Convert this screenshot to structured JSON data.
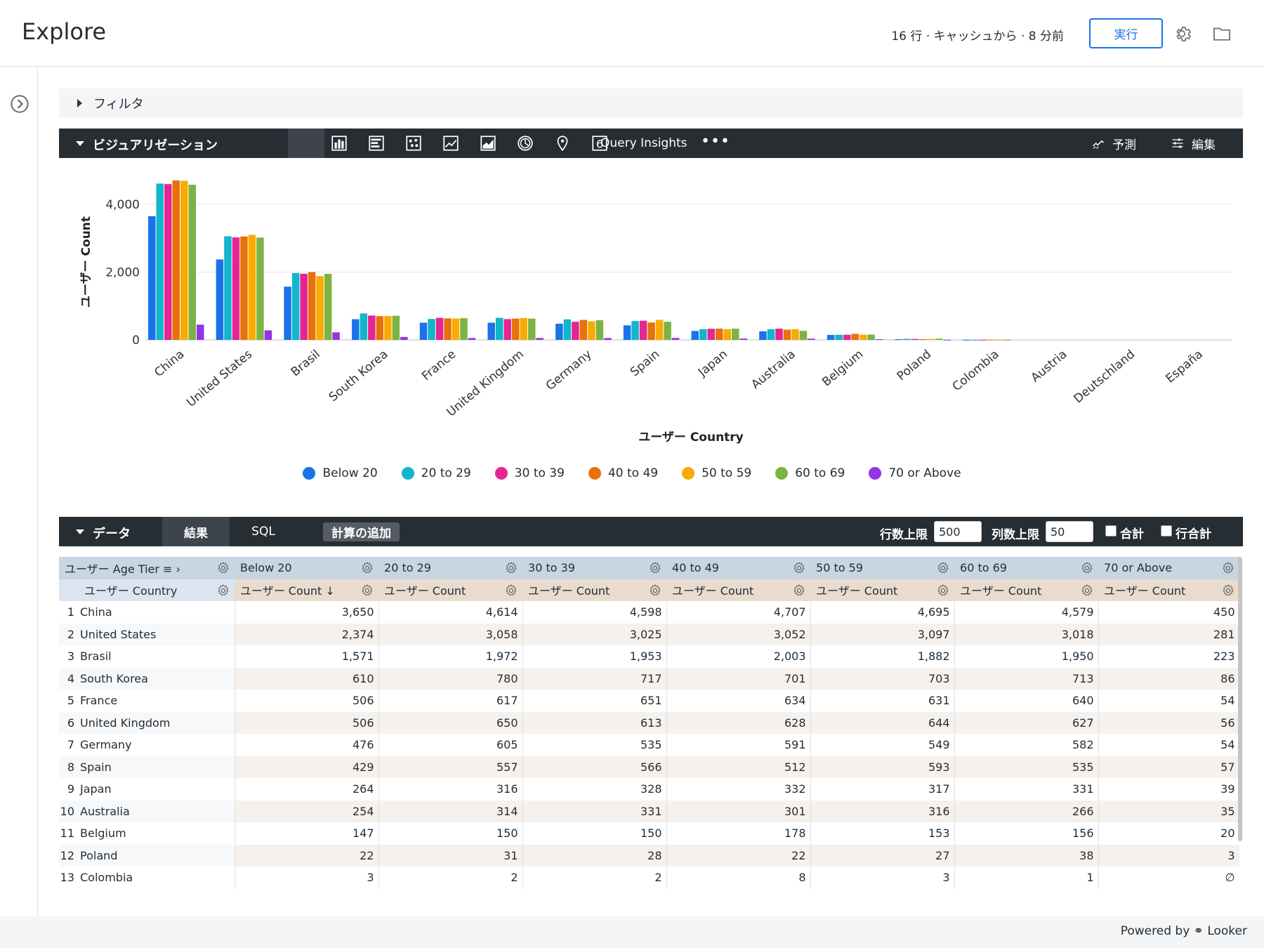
{
  "header": {
    "title": "Explore",
    "status": "16 行 · キャッシュから · 8 分前",
    "run_label": "実行"
  },
  "filter": {
    "label": "フィルタ"
  },
  "viz_bar": {
    "title": "ビジュアリゼーション",
    "icons": [
      "table-icon",
      "column-chart-icon",
      "bar-chart-icon",
      "scatter-icon",
      "line-chart-icon",
      "area-chart-icon",
      "pie-chart-icon",
      "map-pin-icon",
      "single-value-icon"
    ],
    "single_value_glyph": "6",
    "query_insights": "Query Insights",
    "more": "•••",
    "forecast_label": "予測",
    "edit_label": "編集"
  },
  "chart_data": {
    "type": "bar",
    "xlabel": "ユーザー Country",
    "ylabel": "ユーザー Count",
    "y_ticks": [
      "0",
      "2,000",
      "4,000"
    ],
    "ylim": [
      0,
      4000
    ],
    "categories": [
      "China",
      "United States",
      "Brasil",
      "South Korea",
      "France",
      "United Kingdom",
      "Germany",
      "Spain",
      "Japan",
      "Australia",
      "Belgium",
      "Poland",
      "Colombia",
      "Austria",
      "Deutschland",
      "España"
    ],
    "series": [
      {
        "name": "Below 20",
        "color": "#1a73e8",
        "values": [
          3650,
          2374,
          1571,
          610,
          506,
          506,
          476,
          429,
          264,
          254,
          147,
          22,
          3,
          0,
          0,
          0
        ]
      },
      {
        "name": "20 to 29",
        "color": "#12b5cb",
        "values": [
          4614,
          3058,
          1972,
          780,
          617,
          650,
          605,
          557,
          316,
          314,
          150,
          31,
          2,
          0,
          0,
          0
        ]
      },
      {
        "name": "30 to 39",
        "color": "#e52592",
        "values": [
          4598,
          3025,
          1953,
          717,
          651,
          613,
          535,
          566,
          328,
          331,
          150,
          28,
          2,
          0,
          0,
          0
        ]
      },
      {
        "name": "40 to 49",
        "color": "#e8710a",
        "values": [
          4707,
          3052,
          2003,
          701,
          634,
          628,
          591,
          512,
          332,
          301,
          178,
          22,
          8,
          0,
          0,
          0
        ]
      },
      {
        "name": "50 to 59",
        "color": "#f9ab00",
        "values": [
          4695,
          3097,
          1882,
          703,
          631,
          644,
          549,
          593,
          317,
          316,
          153,
          27,
          3,
          0,
          0,
          0
        ]
      },
      {
        "name": "60 to 69",
        "color": "#7cb342",
        "values": [
          4579,
          3018,
          1950,
          713,
          640,
          627,
          582,
          535,
          331,
          266,
          156,
          38,
          1,
          0,
          0,
          0
        ]
      },
      {
        "name": "70 or Above",
        "color": "#9334e6",
        "values": [
          450,
          281,
          223,
          86,
          54,
          56,
          54,
          57,
          39,
          35,
          20,
          3,
          0,
          0,
          0,
          0
        ]
      }
    ]
  },
  "data_bar": {
    "title": "データ",
    "tabs": [
      "結果",
      "SQL"
    ],
    "add_calc": "計算の追加",
    "row_limit_label": "行数上限",
    "row_limit_value": "500",
    "col_limit_label": "列数上限",
    "col_limit_value": "50",
    "totals_label": "合計",
    "row_totals_label": "行合計"
  },
  "table": {
    "pivot_header": "ユーザー Age Tier",
    "dim_header": "ユーザー Country",
    "pivot_values": [
      "Below 20",
      "20 to 29",
      "30 to 39",
      "40 to 49",
      "50 to 59",
      "60 to 69",
      "70 or Above"
    ],
    "measure_headers": [
      "ユーザー Count ↓",
      "ユーザー Count",
      "ユーザー Count",
      "ユーザー Count",
      "ユーザー Count",
      "ユーザー Count",
      "ユーザー Count"
    ],
    "rows": [
      {
        "idx": "1",
        "country": "China",
        "vals": [
          "3,650",
          "4,614",
          "4,598",
          "4,707",
          "4,695",
          "4,579",
          "450"
        ]
      },
      {
        "idx": "2",
        "country": "United States",
        "vals": [
          "2,374",
          "3,058",
          "3,025",
          "3,052",
          "3,097",
          "3,018",
          "281"
        ]
      },
      {
        "idx": "3",
        "country": "Brasil",
        "vals": [
          "1,571",
          "1,972",
          "1,953",
          "2,003",
          "1,882",
          "1,950",
          "223"
        ]
      },
      {
        "idx": "4",
        "country": "South Korea",
        "vals": [
          "610",
          "780",
          "717",
          "701",
          "703",
          "713",
          "86"
        ]
      },
      {
        "idx": "5",
        "country": "France",
        "vals": [
          "506",
          "617",
          "651",
          "634",
          "631",
          "640",
          "54"
        ]
      },
      {
        "idx": "6",
        "country": "United Kingdom",
        "vals": [
          "506",
          "650",
          "613",
          "628",
          "644",
          "627",
          "56"
        ]
      },
      {
        "idx": "7",
        "country": "Germany",
        "vals": [
          "476",
          "605",
          "535",
          "591",
          "549",
          "582",
          "54"
        ]
      },
      {
        "idx": "8",
        "country": "Spain",
        "vals": [
          "429",
          "557",
          "566",
          "512",
          "593",
          "535",
          "57"
        ]
      },
      {
        "idx": "9",
        "country": "Japan",
        "vals": [
          "264",
          "316",
          "328",
          "332",
          "317",
          "331",
          "39"
        ]
      },
      {
        "idx": "10",
        "country": "Australia",
        "vals": [
          "254",
          "314",
          "331",
          "301",
          "316",
          "266",
          "35"
        ]
      },
      {
        "idx": "11",
        "country": "Belgium",
        "vals": [
          "147",
          "150",
          "150",
          "178",
          "153",
          "156",
          "20"
        ]
      },
      {
        "idx": "12",
        "country": "Poland",
        "vals": [
          "22",
          "31",
          "28",
          "22",
          "27",
          "38",
          "3"
        ]
      },
      {
        "idx": "13",
        "country": "Colombia",
        "vals": [
          "3",
          "2",
          "2",
          "8",
          "3",
          "1",
          "∅"
        ]
      }
    ]
  },
  "footer": {
    "powered_by": "Powered by",
    "brand": "Looker"
  }
}
